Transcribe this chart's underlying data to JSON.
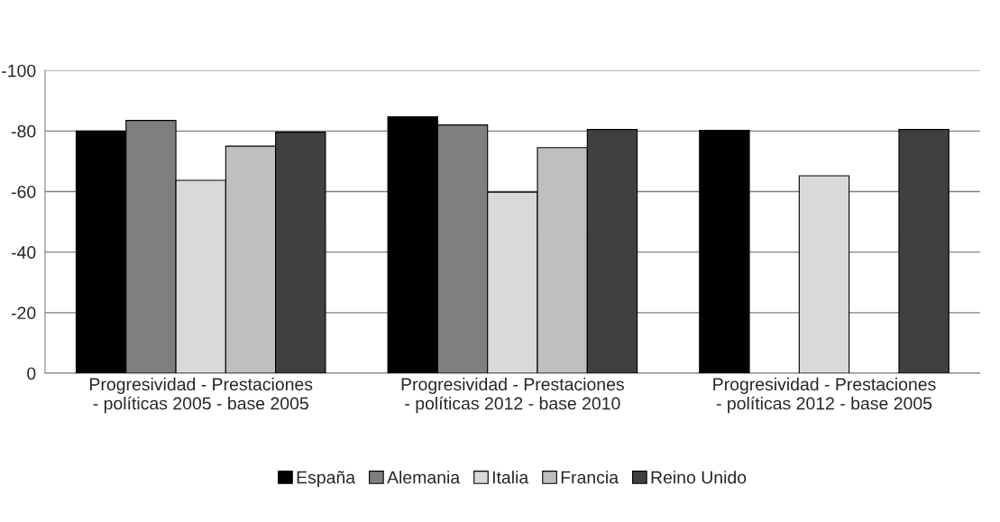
{
  "chart_data": {
    "type": "bar",
    "categories": [
      "Progresividad - Prestaciones - políticas 2005 - base 2005",
      "Progresividad - Prestaciones - políticas 2012 - base 2010",
      "Progresividad - Prestaciones - políticas 2012 - base 2005"
    ],
    "series": [
      {
        "name": "España",
        "color": "#000000",
        "values": [
          -80,
          -84.7,
          -80.2
        ]
      },
      {
        "name": "Alemania",
        "color": "#7f7f7f",
        "values": [
          -83.5,
          -82,
          null
        ]
      },
      {
        "name": "Italia",
        "color": "#d9d9d9",
        "values": [
          -63.7,
          -59.8,
          -65.2
        ]
      },
      {
        "name": "Francia",
        "color": "#bfbfbf",
        "values": [
          -75,
          -74.5,
          null
        ]
      },
      {
        "name": "Reino Unido",
        "color": "#404040",
        "values": [
          -79.6,
          -80.5,
          -80.5
        ]
      }
    ],
    "ylim": [
      0,
      -100
    ],
    "yticks": [
      0,
      -20,
      -40,
      -60,
      -80,
      -100
    ],
    "grid": "y",
    "legend": "bottom"
  }
}
